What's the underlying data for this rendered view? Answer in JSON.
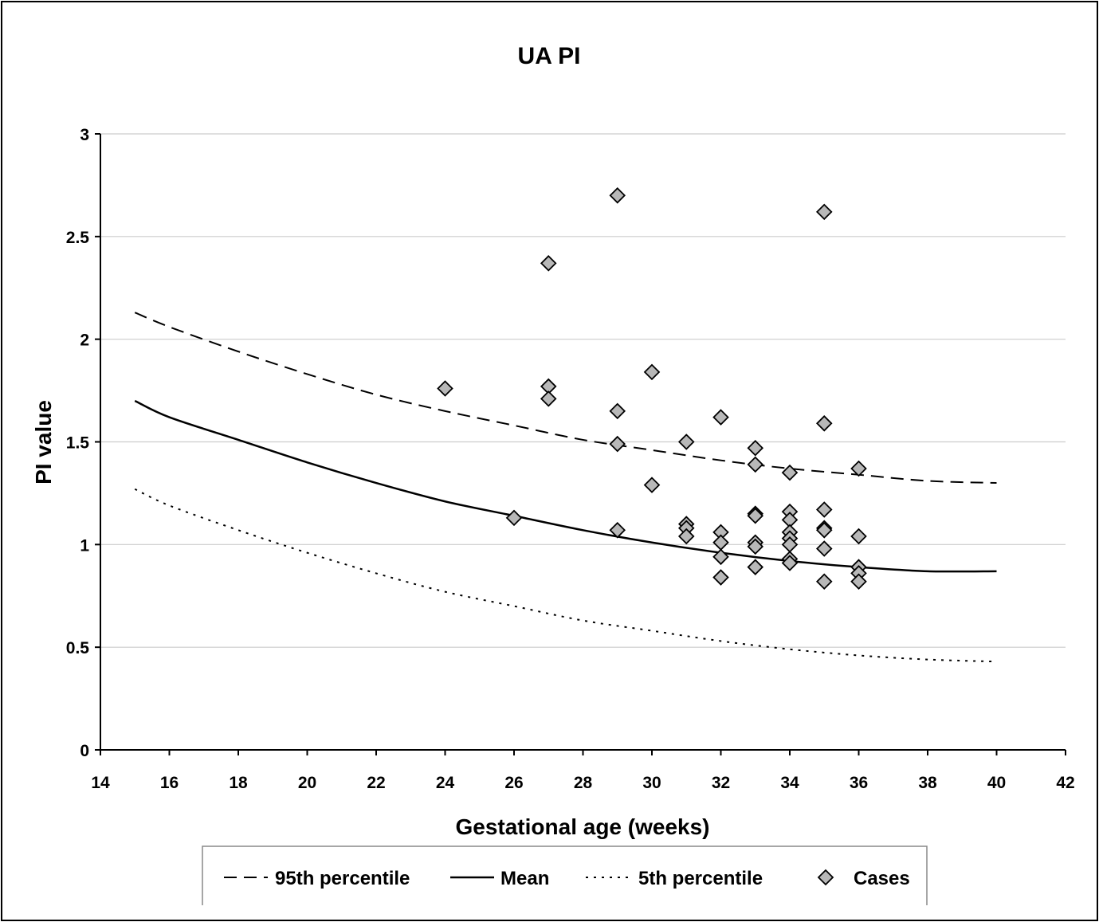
{
  "chart_data": {
    "type": "scatter",
    "title": "UA PI",
    "xlabel": "Gestational age (weeks)",
    "ylabel": "PI value",
    "xlim": [
      14,
      42
    ],
    "ylim": [
      0,
      3
    ],
    "xticks": [
      "14",
      "16",
      "18",
      "20",
      "22",
      "24",
      "26",
      "28",
      "30",
      "32",
      "34",
      "36",
      "38",
      "40",
      "42"
    ],
    "yticks": [
      "0",
      "0.5",
      "1",
      "1.5",
      "2",
      "2.5",
      "3"
    ],
    "grid": "horizontal",
    "legend_position": "bottom",
    "series": [
      {
        "name": "95th percentile",
        "type": "line",
        "style": "dashed",
        "points": [
          [
            15,
            2.13
          ],
          [
            16,
            2.06
          ],
          [
            18,
            1.94
          ],
          [
            20,
            1.83
          ],
          [
            22,
            1.73
          ],
          [
            24,
            1.65
          ],
          [
            26,
            1.58
          ],
          [
            28,
            1.51
          ],
          [
            30,
            1.46
          ],
          [
            32,
            1.41
          ],
          [
            34,
            1.37
          ],
          [
            36,
            1.34
          ],
          [
            38,
            1.31
          ],
          [
            40,
            1.3
          ]
        ]
      },
      {
        "name": "Mean",
        "type": "line",
        "style": "solid",
        "points": [
          [
            15,
            1.7
          ],
          [
            16,
            1.62
          ],
          [
            18,
            1.51
          ],
          [
            20,
            1.4
          ],
          [
            22,
            1.3
          ],
          [
            24,
            1.21
          ],
          [
            26,
            1.14
          ],
          [
            28,
            1.07
          ],
          [
            30,
            1.01
          ],
          [
            32,
            0.96
          ],
          [
            34,
            0.92
          ],
          [
            36,
            0.89
          ],
          [
            38,
            0.87
          ],
          [
            40,
            0.87
          ]
        ]
      },
      {
        "name": "5th percentile",
        "type": "line",
        "style": "dotted",
        "points": [
          [
            15,
            1.27
          ],
          [
            16,
            1.19
          ],
          [
            18,
            1.07
          ],
          [
            20,
            0.96
          ],
          [
            22,
            0.86
          ],
          [
            24,
            0.77
          ],
          [
            26,
            0.7
          ],
          [
            28,
            0.63
          ],
          [
            30,
            0.58
          ],
          [
            32,
            0.53
          ],
          [
            34,
            0.49
          ],
          [
            36,
            0.46
          ],
          [
            38,
            0.44
          ],
          [
            40,
            0.43
          ]
        ]
      },
      {
        "name": "Cases",
        "type": "scatter",
        "marker": "diamond",
        "points": [
          [
            24,
            1.76
          ],
          [
            26,
            1.13
          ],
          [
            27,
            2.37
          ],
          [
            27,
            1.77
          ],
          [
            27,
            1.71
          ],
          [
            29,
            2.7
          ],
          [
            29,
            1.65
          ],
          [
            29,
            1.49
          ],
          [
            29,
            1.07
          ],
          [
            30,
            1.84
          ],
          [
            30,
            1.29
          ],
          [
            31,
            1.5
          ],
          [
            31,
            1.1
          ],
          [
            31,
            1.08
          ],
          [
            31,
            1.04
          ],
          [
            32,
            1.62
          ],
          [
            32,
            1.06
          ],
          [
            32,
            1.01
          ],
          [
            32,
            0.94
          ],
          [
            32,
            0.84
          ],
          [
            33,
            1.47
          ],
          [
            33,
            1.39
          ],
          [
            33,
            1.15
          ],
          [
            33,
            1.14
          ],
          [
            33,
            1.01
          ],
          [
            33,
            0.99
          ],
          [
            33,
            0.89
          ],
          [
            34,
            1.35
          ],
          [
            34,
            1.16
          ],
          [
            34,
            1.12
          ],
          [
            34,
            1.06
          ],
          [
            34,
            1.03
          ],
          [
            34,
            1.0
          ],
          [
            34,
            0.93
          ],
          [
            34,
            0.91
          ],
          [
            35,
            2.62
          ],
          [
            35,
            1.59
          ],
          [
            35,
            1.17
          ],
          [
            35,
            1.08
          ],
          [
            35,
            1.07
          ],
          [
            35,
            0.98
          ],
          [
            35,
            0.82
          ],
          [
            36,
            1.37
          ],
          [
            36,
            1.04
          ],
          [
            36,
            0.89
          ],
          [
            36,
            0.86
          ],
          [
            36,
            0.82
          ]
        ]
      }
    ],
    "colors": {
      "axis": "#000000",
      "grid": "#cccccc",
      "marker_fill": "#b8b8b8",
      "marker_stroke": "#000000",
      "line": "#000000"
    }
  }
}
